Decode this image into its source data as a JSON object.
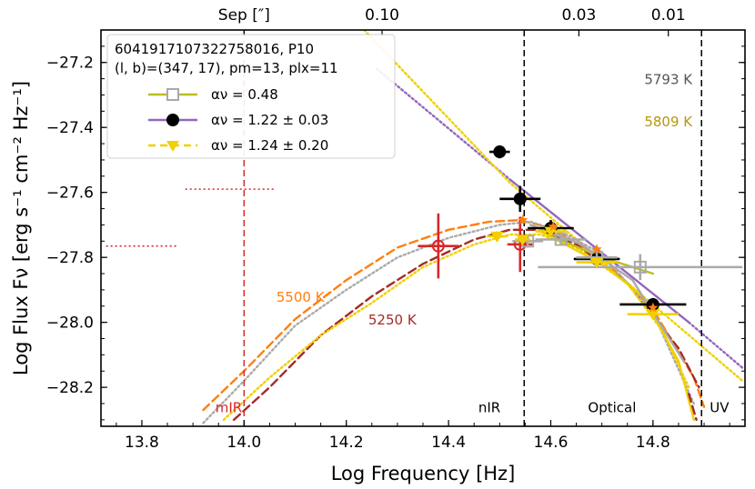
{
  "chart_data": {
    "type": "scatter",
    "xlabel": "Log Frequency [Hz]",
    "ylabel": "Log Flux Fν [erg s⁻¹ cm⁻² Hz⁻¹]",
    "xlim": [
      13.72,
      14.98
    ],
    "ylim": [
      -28.32,
      -27.1
    ],
    "xticks": [
      13.8,
      14.0,
      14.2,
      14.4,
      14.6,
      14.8
    ],
    "xtick_labels": [
      "13.8",
      "14.0",
      "14.2",
      "14.4",
      "14.6",
      "14.8"
    ],
    "yticks": [
      -27.2,
      -27.4,
      -27.6,
      -27.8,
      -28.0,
      -28.2
    ],
    "ytick_labels": [
      "−27.2",
      "−27.4",
      "−27.6",
      "−27.8",
      "−28.0",
      "−28.2"
    ],
    "top_axis": {
      "title": "Sep [″]",
      "ticks": [
        {
          "x": 14.27,
          "label": "0.10",
          "color": "#d62728"
        },
        {
          "x": 14.655,
          "label": "0.03",
          "color": "#000000"
        },
        {
          "x": 14.83,
          "label": "0.01",
          "color": "#c8a000"
        }
      ]
    },
    "vlines": [
      {
        "x": 14.0,
        "color": "#d62728",
        "label": "mIR"
      },
      {
        "x": 14.548,
        "color": "#000000",
        "label": "nIR"
      },
      {
        "x": 14.895,
        "color": "#000000",
        "label": "UV"
      }
    ],
    "band_labels": [
      {
        "x": 13.97,
        "y": -28.26,
        "text": "mIR",
        "color": "#d62728"
      },
      {
        "x": 14.48,
        "y": -28.26,
        "text": "nIR",
        "color": "#000000"
      },
      {
        "x": 14.72,
        "y": -28.26,
        "text": "Optical",
        "color": "#000000"
      },
      {
        "x": 14.93,
        "y": -28.26,
        "text": "UV",
        "color": "#000000"
      }
    ],
    "legend": {
      "title_line1": "6041917107322758016, P10",
      "title_line2": "(l, b)=(347, 17), pm=13, plx=11",
      "entries": [
        {
          "label": "αν = 0.48",
          "color": "#bcbd22",
          "marker": "open-square",
          "marker_color": "#aaaaaa",
          "style": "solid"
        },
        {
          "label": "αν = 1.22 ± 0.03",
          "color": "#9467bd",
          "marker": "filled-circle",
          "marker_color": "#000000",
          "style": "solid"
        },
        {
          "label": "αν = 1.24 ± 0.20",
          "color": "#f0d000",
          "marker": "filled-triangle-down",
          "marker_color": "#f0d000",
          "style": "dashed"
        }
      ]
    },
    "temperature_labels": [
      {
        "x": 14.83,
        "y": -27.25,
        "text": "5793 K",
        "color": "#555555"
      },
      {
        "x": 14.83,
        "y": -27.38,
        "text": "5809 K",
        "color": "#b8960c"
      },
      {
        "x": 14.11,
        "y": -27.92,
        "text": "5500 K",
        "color": "#ff7f0e"
      },
      {
        "x": 14.29,
        "y": -27.99,
        "text": "5250 K",
        "color": "#a52a2a"
      }
    ],
    "series": [
      {
        "name": "black-circles",
        "color": "#000000",
        "points": [
          {
            "x": 14.5,
            "y": -27.475,
            "xerr": 0.02,
            "yerr": 0.02
          },
          {
            "x": 14.54,
            "y": -27.62,
            "xerr": 0.04,
            "yerr": 0.04
          },
          {
            "x": 14.6,
            "y": -27.71,
            "xerr": 0.045,
            "yerr": 0.025
          },
          {
            "x": 14.69,
            "y": -27.805,
            "xerr": 0.045,
            "yerr": 0.025
          },
          {
            "x": 14.8,
            "y": -27.945,
            "xerr": 0.065,
            "yerr": 0.02
          }
        ]
      },
      {
        "name": "red-open-circles",
        "color": "#d62728",
        "points": [
          {
            "x": 14.38,
            "y": -27.765,
            "xerr": 0.04,
            "yerr": 0.1
          },
          {
            "x": 14.54,
            "y": -27.76,
            "xerr": 0.025,
            "yerr": 0.085
          }
        ]
      },
      {
        "name": "gray-open-squares",
        "color": "#aaaaaa",
        "points": [
          {
            "x": 14.555,
            "y": -27.75,
            "xerr": 0.03,
            "yerr": 0.02
          },
          {
            "x": 14.62,
            "y": -27.745,
            "xerr": 0.05,
            "yerr": 0.015
          },
          {
            "x": 14.69,
            "y": -27.8,
            "xerr": 0.04,
            "yerr": 0.015
          },
          {
            "x": 14.775,
            "y": -27.83,
            "xerr": 0.2,
            "yerr": 0.04
          }
        ]
      },
      {
        "name": "yellow-triangles",
        "color": "#f0d000",
        "points": [
          {
            "x": 14.495,
            "y": -27.735,
            "xerr": 0.02,
            "yerr": 0.015
          },
          {
            "x": 14.545,
            "y": -27.745,
            "xerr": 0.015,
            "yerr": 0.01
          },
          {
            "x": 14.6,
            "y": -27.72,
            "xerr": 0.03,
            "yerr": 0.01
          },
          {
            "x": 14.69,
            "y": -27.815,
            "xerr": 0.04,
            "yerr": 0.01
          },
          {
            "x": 14.8,
            "y": -27.975,
            "xerr": 0.05,
            "yerr": 0.01
          }
        ]
      },
      {
        "name": "orange-stars",
        "color": "#ff7f0e",
        "points": [
          {
            "x": 14.545,
            "y": -27.685
          },
          {
            "x": 14.605,
            "y": -27.705
          },
          {
            "x": 14.69,
            "y": -27.775
          },
          {
            "x": 14.8,
            "y": -27.955
          }
        ]
      },
      {
        "name": "red-dotted-ticks",
        "color": "#d62728",
        "segments": [
          {
            "x1": 13.885,
            "x2": 14.06,
            "y": -27.59
          },
          {
            "x1": 13.73,
            "x2": 13.87,
            "y": -27.765
          }
        ]
      }
    ],
    "curves": [
      {
        "name": "purple-powerlaw",
        "color": "#9467bd",
        "style": "solid",
        "points": [
          [
            14.52,
            -27.56
          ],
          [
            14.87,
            -28.0
          ]
        ]
      },
      {
        "name": "purple-powerlaw-ext",
        "color": "#9467bd",
        "style": "dotted",
        "points": [
          [
            14.26,
            -27.22
          ],
          [
            14.52,
            -27.56
          ]
        ]
      },
      {
        "name": "purple-powerlaw-ext2",
        "color": "#9467bd",
        "style": "dotted",
        "points": [
          [
            14.87,
            -28.0
          ],
          [
            14.975,
            -28.14
          ]
        ]
      },
      {
        "name": "yellow-dotted-powerlaw",
        "color": "#f0d000",
        "style": "dotted",
        "points": [
          [
            14.235,
            -27.1
          ],
          [
            14.52,
            -27.57
          ],
          [
            14.975,
            -28.18
          ]
        ]
      },
      {
        "name": "orange-bb-5500",
        "color": "#ff7f0e",
        "style": "dashed",
        "points": [
          [
            13.92,
            -28.27
          ],
          [
            14.0,
            -28.15
          ],
          [
            14.1,
            -27.99
          ],
          [
            14.2,
            -27.87
          ],
          [
            14.3,
            -27.77
          ],
          [
            14.4,
            -27.715
          ],
          [
            14.48,
            -27.69
          ],
          [
            14.54,
            -27.685
          ],
          [
            14.6,
            -27.71
          ],
          [
            14.7,
            -27.8
          ],
          [
            14.8,
            -27.96
          ],
          [
            14.88,
            -28.17
          ],
          [
            14.9,
            -28.26
          ]
        ]
      },
      {
        "name": "darkred-bb-5250",
        "color": "#a52a2a",
        "style": "dashed",
        "points": [
          [
            13.98,
            -28.3
          ],
          [
            14.05,
            -28.2
          ],
          [
            14.15,
            -28.04
          ],
          [
            14.25,
            -27.92
          ],
          [
            14.35,
            -27.82
          ],
          [
            14.45,
            -27.745
          ],
          [
            14.52,
            -27.715
          ],
          [
            14.57,
            -27.715
          ],
          [
            14.65,
            -27.76
          ],
          [
            14.75,
            -27.88
          ],
          [
            14.85,
            -28.08
          ],
          [
            14.89,
            -28.2
          ]
        ]
      },
      {
        "name": "gray-bb-5793",
        "color": "#aaaaaa",
        "style": "dotted",
        "points": [
          [
            13.92,
            -28.31
          ],
          [
            14.0,
            -28.18
          ],
          [
            14.1,
            -28.01
          ],
          [
            14.2,
            -27.9
          ],
          [
            14.3,
            -27.8
          ],
          [
            14.4,
            -27.74
          ],
          [
            14.5,
            -27.7
          ],
          [
            14.56,
            -27.69
          ],
          [
            14.62,
            -27.72
          ],
          [
            14.7,
            -27.79
          ],
          [
            14.8,
            -27.97
          ],
          [
            14.88,
            -28.25
          ]
        ]
      },
      {
        "name": "yellow-bb-5809",
        "color": "#f0d000",
        "style": "dotted",
        "points": [
          [
            13.96,
            -28.3
          ],
          [
            14.05,
            -28.17
          ],
          [
            14.15,
            -28.04
          ],
          [
            14.25,
            -27.94
          ],
          [
            14.35,
            -27.83
          ],
          [
            14.45,
            -27.76
          ],
          [
            14.52,
            -27.73
          ],
          [
            14.58,
            -27.73
          ],
          [
            14.65,
            -27.77
          ],
          [
            14.75,
            -27.88
          ],
          [
            14.82,
            -28.03
          ],
          [
            14.87,
            -28.2
          ]
        ]
      },
      {
        "name": "olive-powerlaw",
        "color": "#bcbd22",
        "style": "solid",
        "points": [
          [
            14.58,
            -27.72
          ],
          [
            14.7,
            -27.8
          ],
          [
            14.8,
            -27.85
          ]
        ]
      },
      {
        "name": "yellow-solid-fit",
        "color": "#f0d000",
        "style": "solid",
        "points": [
          [
            14.58,
            -27.72
          ],
          [
            14.7,
            -27.82
          ],
          [
            14.78,
            -27.92
          ],
          [
            14.85,
            -28.12
          ],
          [
            14.88,
            -28.3
          ]
        ]
      },
      {
        "name": "gray-solid-fit",
        "color": "#aaaaaa",
        "style": "solid",
        "points": [
          [
            14.56,
            -27.7
          ],
          [
            14.66,
            -27.76
          ],
          [
            14.76,
            -27.87
          ],
          [
            14.82,
            -28.02
          ],
          [
            14.86,
            -28.12
          ]
        ]
      },
      {
        "name": "darkred-dashed-tail",
        "color": "#a52a2a",
        "style": "dashed",
        "points": [
          [
            14.87,
            -28.22
          ],
          [
            14.885,
            -28.3
          ]
        ]
      }
    ]
  }
}
